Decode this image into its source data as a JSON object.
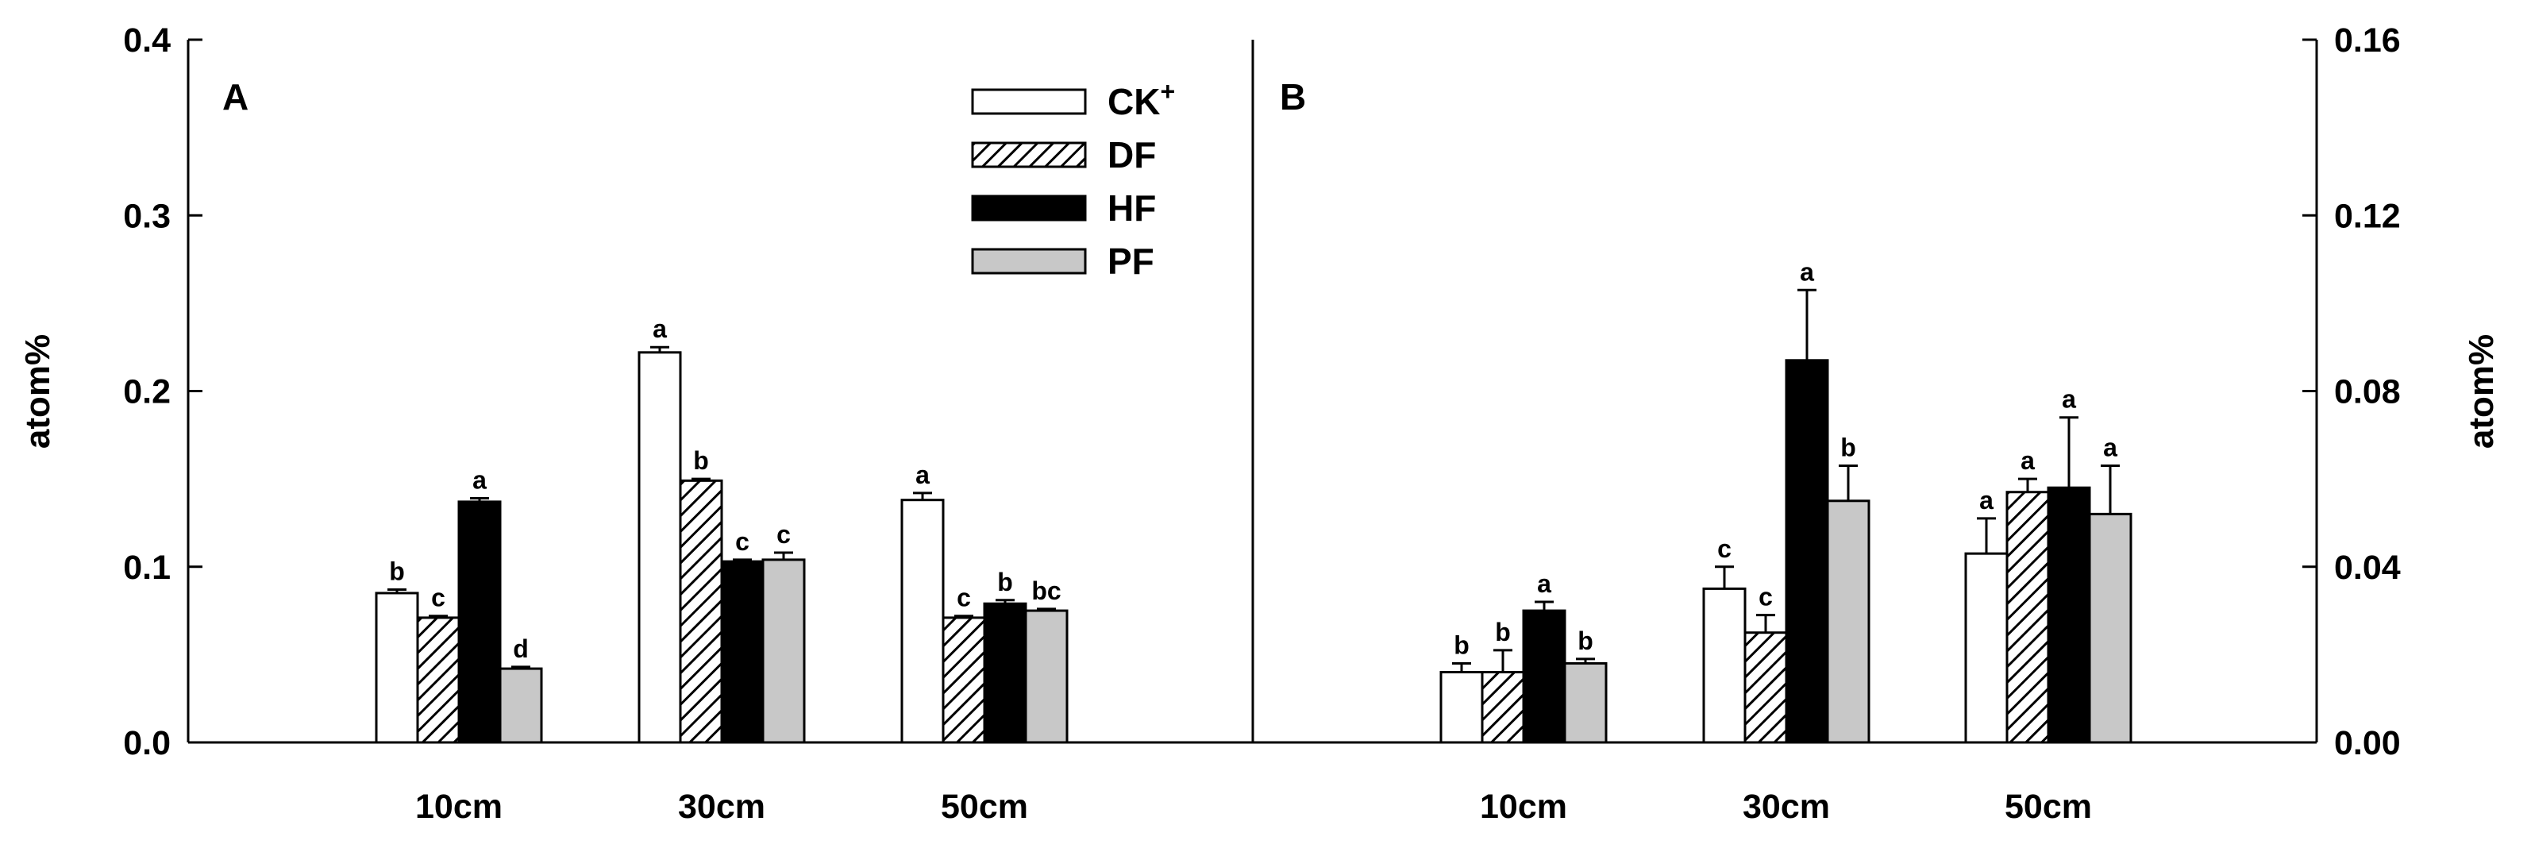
{
  "chart_data": [
    {
      "type": "bar",
      "panel_label": "A",
      "ylabel": "atom%",
      "ylim": [
        0,
        0.4
      ],
      "yticks": [
        "0.0",
        "0.1",
        "0.2",
        "0.3",
        "0.4"
      ],
      "y_axis_side": "left",
      "categories": [
        "10cm",
        "30cm",
        "50cm"
      ],
      "series": [
        {
          "name": "CK+",
          "values": [
            0.085,
            0.222,
            0.138
          ],
          "errors": [
            0.002,
            0.003,
            0.004
          ],
          "letters": [
            "b",
            "a",
            "a"
          ]
        },
        {
          "name": "DF",
          "values": [
            0.071,
            0.149,
            0.071
          ],
          "errors": [
            0.001,
            0.001,
            0.001
          ],
          "letters": [
            "c",
            "b",
            "c"
          ]
        },
        {
          "name": "HF",
          "values": [
            0.137,
            0.103,
            0.079
          ],
          "errors": [
            0.002,
            0.001,
            0.002
          ],
          "letters": [
            "a",
            "c",
            "b"
          ]
        },
        {
          "name": "PF",
          "values": [
            0.042,
            0.104,
            0.075
          ],
          "errors": [
            0.001,
            0.004,
            0.001
          ],
          "letters": [
            "d",
            "c",
            "bc"
          ]
        }
      ]
    },
    {
      "type": "bar",
      "panel_label": "B",
      "ylabel": "atom%",
      "ylim": [
        0,
        0.16
      ],
      "yticks": [
        "0.00",
        "0.04",
        "0.08",
        "0.12",
        "0.16"
      ],
      "y_axis_side": "right",
      "categories": [
        "10cm",
        "30cm",
        "50cm"
      ],
      "series": [
        {
          "name": "CK+",
          "values": [
            0.016,
            0.035,
            0.043
          ],
          "errors": [
            0.002,
            0.005,
            0.008
          ],
          "letters": [
            "b",
            "c",
            "a"
          ]
        },
        {
          "name": "DF",
          "values": [
            0.016,
            0.025,
            0.057
          ],
          "errors": [
            0.005,
            0.004,
            0.003
          ],
          "letters": [
            "b",
            "c",
            "a"
          ]
        },
        {
          "name": "HF",
          "values": [
            0.03,
            0.087,
            0.058
          ],
          "errors": [
            0.002,
            0.016,
            0.016
          ],
          "letters": [
            "a",
            "a",
            "a"
          ]
        },
        {
          "name": "PF",
          "values": [
            0.018,
            0.055,
            0.052
          ],
          "errors": [
            0.001,
            0.008,
            0.011
          ],
          "letters": [
            "b",
            "b",
            "a"
          ]
        }
      ]
    }
  ],
  "legend": {
    "placement": "top-right of panel A",
    "entries": [
      {
        "base": "CK",
        "sup": "+",
        "fill": "white"
      },
      {
        "base": "DF",
        "sup": "",
        "fill": "hatch"
      },
      {
        "base": "HF",
        "sup": "",
        "fill": "black"
      },
      {
        "base": "PF",
        "sup": "",
        "fill": "gray"
      }
    ]
  },
  "colors": {
    "CK+": "#ffffff",
    "DF": "hatch",
    "HF": "#000000",
    "PF": "#c8c8c8",
    "axis": "#000000"
  }
}
